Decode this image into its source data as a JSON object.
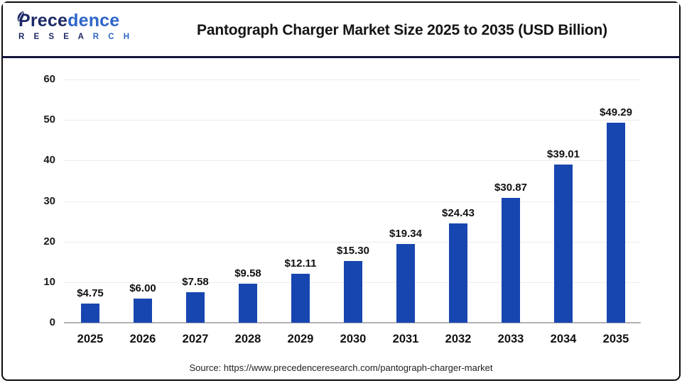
{
  "header": {
    "logo": {
      "name_part1": "Prece",
      "name_part2": "dence",
      "subtitle_part1": "R E S E A ",
      "subtitle_part2": "R C H"
    },
    "title": "Pantograph Charger Market Size 2025 to 2035 (USD Billion)"
  },
  "chart_data": {
    "type": "bar",
    "title": "Pantograph Charger Market Size 2025 to 2035 (USD Billion)",
    "categories": [
      "2025",
      "2026",
      "2027",
      "2028",
      "2029",
      "2030",
      "2031",
      "2032",
      "2033",
      "2034",
      "2035"
    ],
    "values": [
      4.75,
      6.0,
      7.58,
      9.58,
      12.11,
      15.3,
      19.34,
      24.43,
      30.87,
      39.01,
      49.29
    ],
    "value_labels": [
      "$4.75",
      "$6.00",
      "$7.58",
      "$9.58",
      "$12.11",
      "$15.30",
      "$19.34",
      "$24.43",
      "$30.87",
      "$39.01",
      "$49.29"
    ],
    "xlabel": "",
    "ylabel": "",
    "ylim": [
      0,
      60
    ],
    "yticks": [
      0,
      10,
      20,
      30,
      40,
      50,
      60
    ],
    "bar_color": "#1846b0",
    "grid": true,
    "legend_position": "none"
  },
  "footer": {
    "source": "Source: https://www.precedenceresearch.com/pantograph-charger-market"
  }
}
